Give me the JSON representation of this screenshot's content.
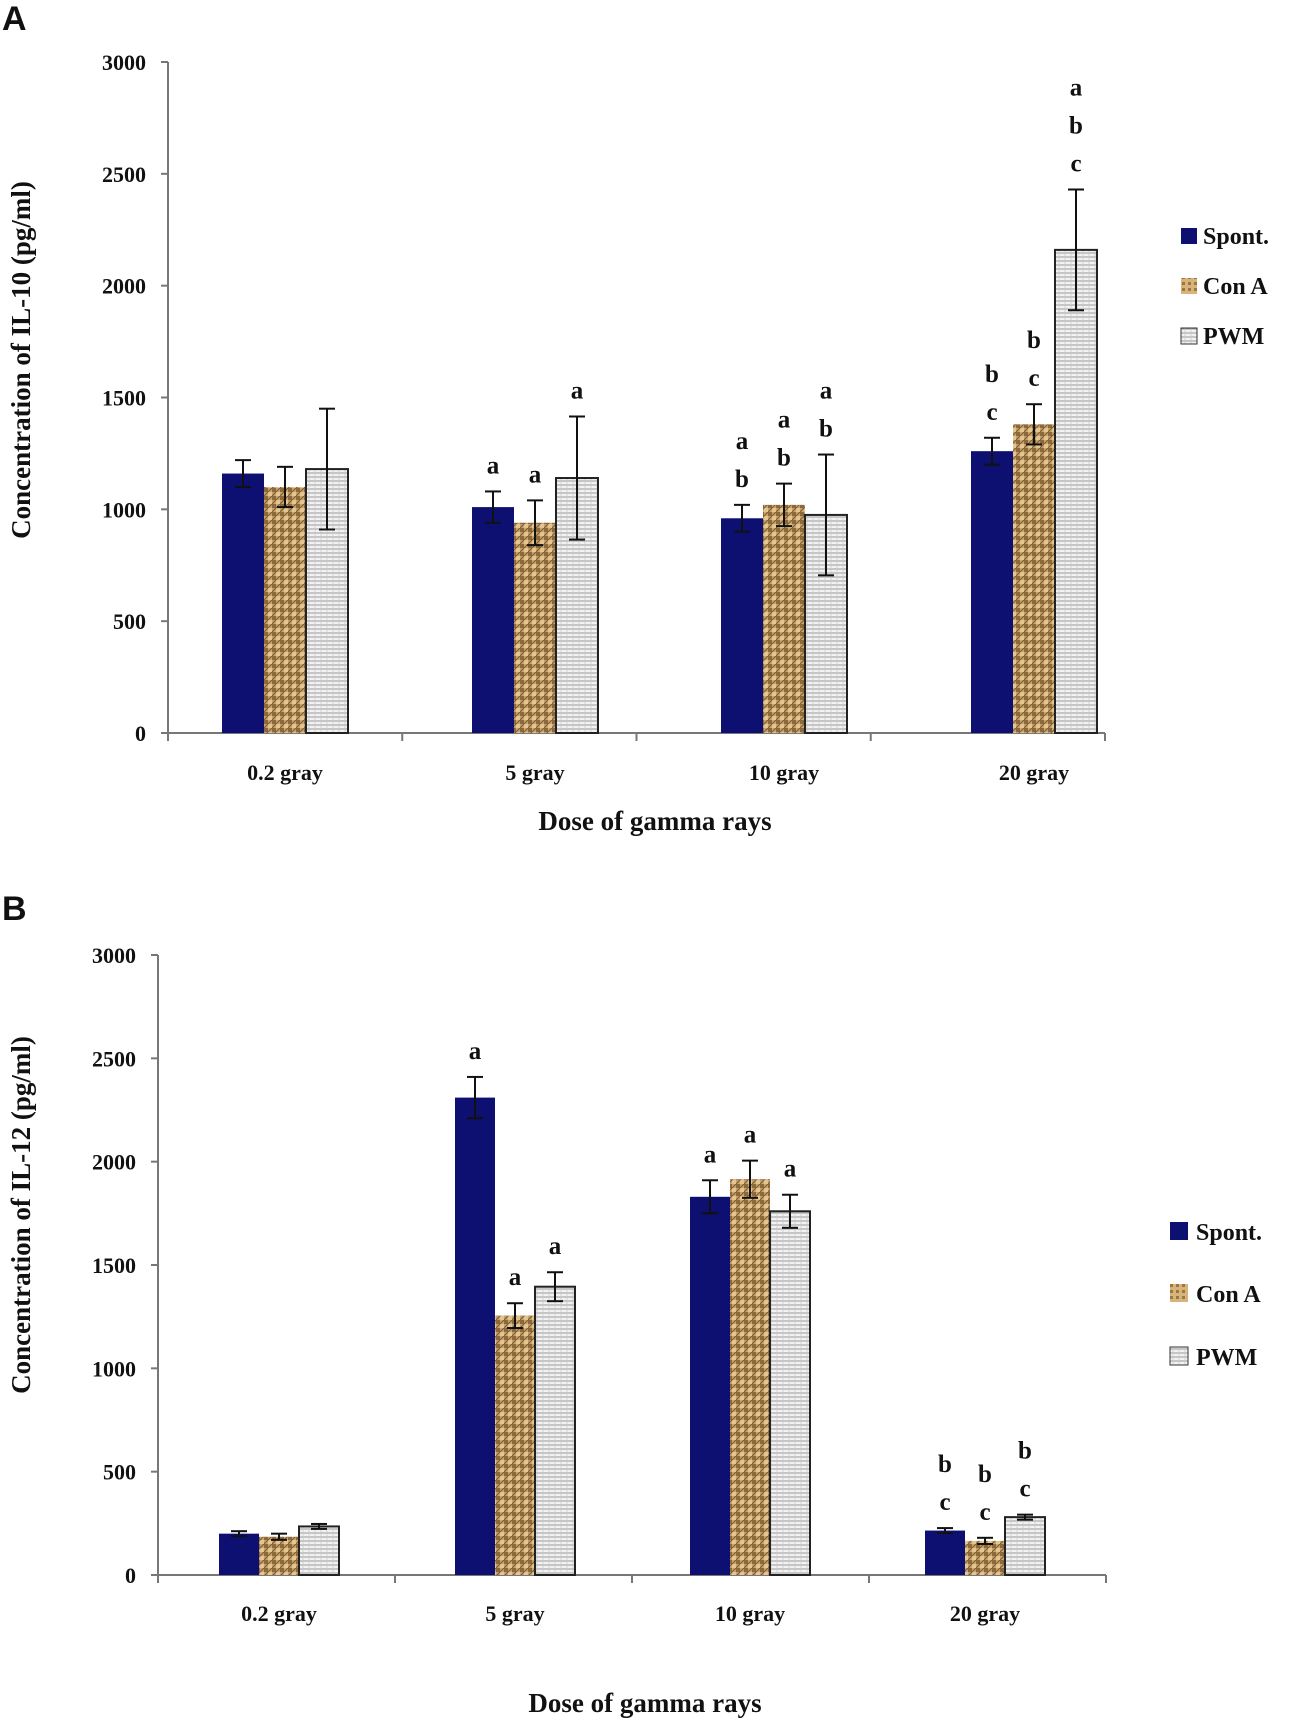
{
  "colors": {
    "spont": "#0d1070",
    "con_a": "#c9a36b",
    "pwm": "#e8e8e8",
    "axis": "#777777",
    "text": "#111111"
  },
  "chart_data": [
    {
      "panel": "A",
      "type": "bar",
      "ylabel": "Concentration of IL-10 (pg/ml)",
      "xlabel": "Dose of gamma rays",
      "ylim": [
        0,
        3000
      ],
      "yticks": [
        "0",
        "500",
        "1000",
        "1500",
        "2000",
        "2500",
        "3000"
      ],
      "categories": [
        "0.2 gray",
        "5 gray",
        "10 gray",
        "20 gray"
      ],
      "legend": [
        "Spont.",
        "Con A",
        "PWM"
      ],
      "series": [
        {
          "name": "Spont.",
          "values": [
            1160,
            1010,
            960,
            1260
          ],
          "errors": [
            60,
            70,
            60,
            60
          ],
          "sig": [
            [],
            [
              "a"
            ],
            [
              "a",
              "b"
            ],
            [
              "b",
              "c"
            ]
          ]
        },
        {
          "name": "Con A",
          "values": [
            1100,
            940,
            1020,
            1380
          ],
          "errors": [
            90,
            100,
            95,
            90
          ],
          "sig": [
            [],
            [
              "a"
            ],
            [
              "a",
              "b"
            ],
            [
              "b",
              "c"
            ]
          ]
        },
        {
          "name": "PWM",
          "values": [
            1180,
            1140,
            975,
            2160
          ],
          "errors": [
            270,
            275,
            270,
            270
          ],
          "sig": [
            [],
            [
              "a"
            ],
            [
              "a",
              "b"
            ],
            [
              "a",
              "b",
              "c"
            ]
          ]
        }
      ]
    },
    {
      "panel": "B",
      "type": "bar",
      "ylabel": "Concentration of IL-12 (pg/ml)",
      "xlabel": "Dose of gamma rays",
      "ylim": [
        0,
        3000
      ],
      "yticks": [
        "0",
        "500",
        "1000",
        "1500",
        "2000",
        "2500",
        "3000"
      ],
      "categories": [
        "0.2 gray",
        "5 gray",
        "10 gray",
        "20 gray"
      ],
      "legend": [
        "Spont.",
        "Con A",
        "PWM"
      ],
      "series": [
        {
          "name": "Spont.",
          "values": [
            200,
            2310,
            1830,
            215
          ],
          "errors": [
            12,
            100,
            80,
            12
          ],
          "sig": [
            [],
            [
              "a"
            ],
            [
              "a"
            ],
            [
              "b",
              "c"
            ]
          ]
        },
        {
          "name": "Con A",
          "values": [
            185,
            1255,
            1915,
            165
          ],
          "errors": [
            15,
            60,
            90,
            15
          ],
          "sig": [
            [],
            [
              "a"
            ],
            [
              "a"
            ],
            [
              "b",
              "c"
            ]
          ]
        },
        {
          "name": "PWM",
          "values": [
            235,
            1395,
            1760,
            280
          ],
          "errors": [
            12,
            70,
            80,
            12
          ],
          "sig": [
            [],
            [
              "a"
            ],
            [
              "a"
            ],
            [
              "b",
              "c"
            ]
          ]
        }
      ]
    }
  ]
}
